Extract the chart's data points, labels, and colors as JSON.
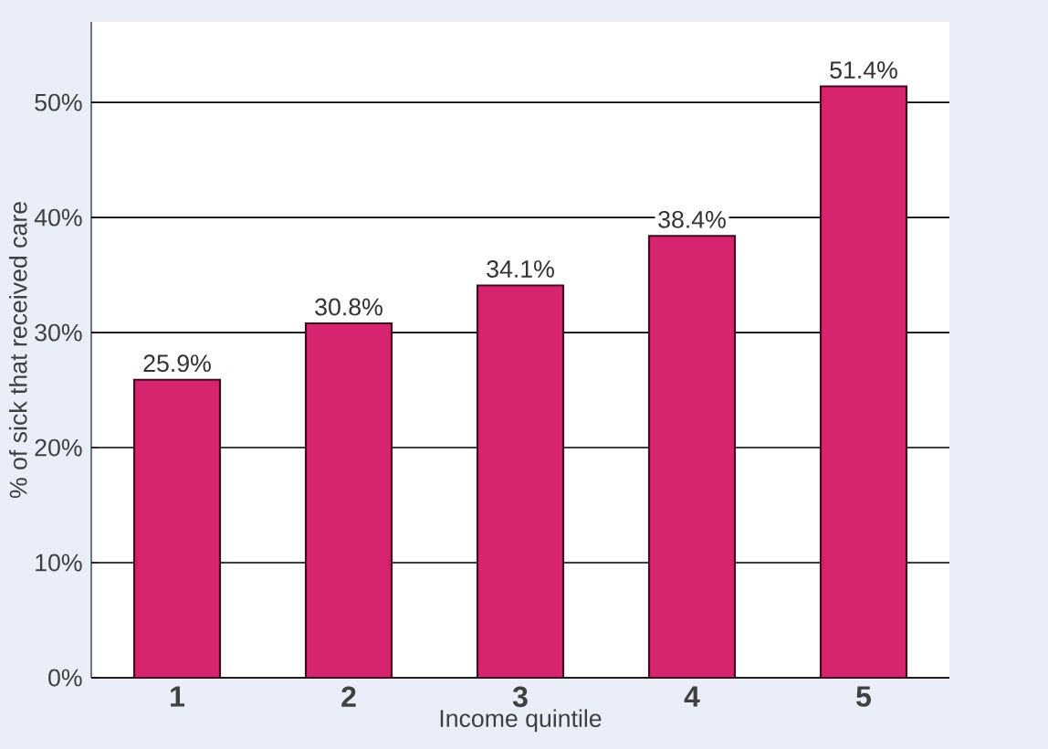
{
  "chart_data": {
    "type": "bar",
    "xlabel": "Income quintile",
    "ylabel": "% of sick that received care",
    "categories": [
      "1",
      "2",
      "3",
      "4",
      "5"
    ],
    "values": [
      25.9,
      30.8,
      34.1,
      38.4,
      51.4
    ],
    "value_labels": [
      "25.9%",
      "30.8%",
      "34.1%",
      "38.4%",
      "51.4%"
    ],
    "color": "#d6246e",
    "ylim": [
      0,
      57
    ],
    "yticks": [
      {
        "value": 0,
        "label": "0%"
      },
      {
        "value": 10,
        "label": "10%"
      },
      {
        "value": 20,
        "label": "20%"
      },
      {
        "value": 30,
        "label": "30%"
      },
      {
        "value": 40,
        "label": "40%"
      },
      {
        "value": 50,
        "label": "50%"
      }
    ],
    "grid": "y"
  }
}
